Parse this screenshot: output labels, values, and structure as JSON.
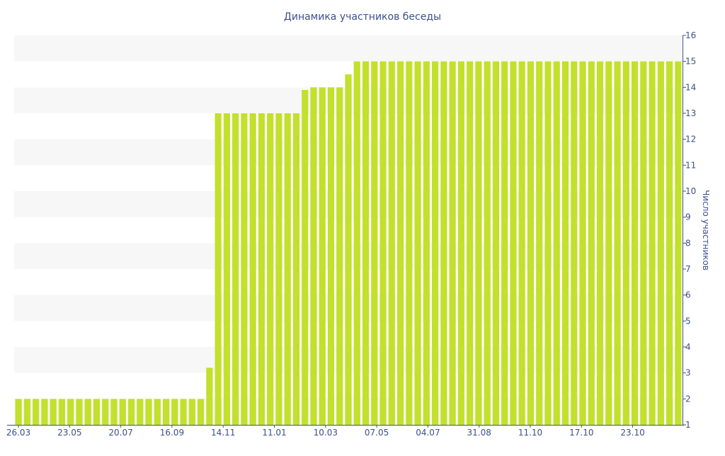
{
  "chart_data": {
    "type": "bar",
    "title": "Динамика участников беседы",
    "ylabel": "Число участников",
    "xlabel": "",
    "ylim": [
      1,
      16
    ],
    "y_ticks": [
      1,
      2,
      3,
      4,
      5,
      6,
      7,
      8,
      9,
      10,
      11,
      12,
      13,
      14,
      15,
      16
    ],
    "y_axis_position": "right",
    "grid": "alternating horizontal bands",
    "x_tick_labels": [
      "26.03",
      "23.05",
      "20.07",
      "16.09",
      "14.11",
      "11.01",
      "10.03",
      "07.05",
      "04.07",
      "31.08",
      "11.10",
      "17.10",
      "23.10"
    ],
    "series": [
      {
        "values": [
          2,
          2,
          2,
          2,
          2,
          2,
          2,
          2,
          2,
          2,
          2,
          2,
          2,
          2,
          2,
          2,
          2,
          2,
          2,
          2,
          2,
          2,
          3.2,
          13,
          13,
          13,
          13,
          13,
          13,
          13,
          13,
          13,
          13,
          13.9,
          14,
          14,
          14,
          14,
          14.5,
          15,
          15,
          15,
          15,
          15,
          15,
          15,
          15,
          15,
          15,
          15,
          15,
          15,
          15,
          15,
          15,
          15,
          15,
          15,
          15,
          15,
          15,
          15,
          15,
          15,
          15,
          15,
          15,
          15,
          15,
          15,
          15,
          15,
          15,
          15,
          15,
          15,
          15
        ]
      }
    ],
    "colors": {
      "bar": "#c3e02c",
      "band": "#f7f7f7",
      "text": "#3d4f8f",
      "axis": "#3d4f8f"
    }
  }
}
